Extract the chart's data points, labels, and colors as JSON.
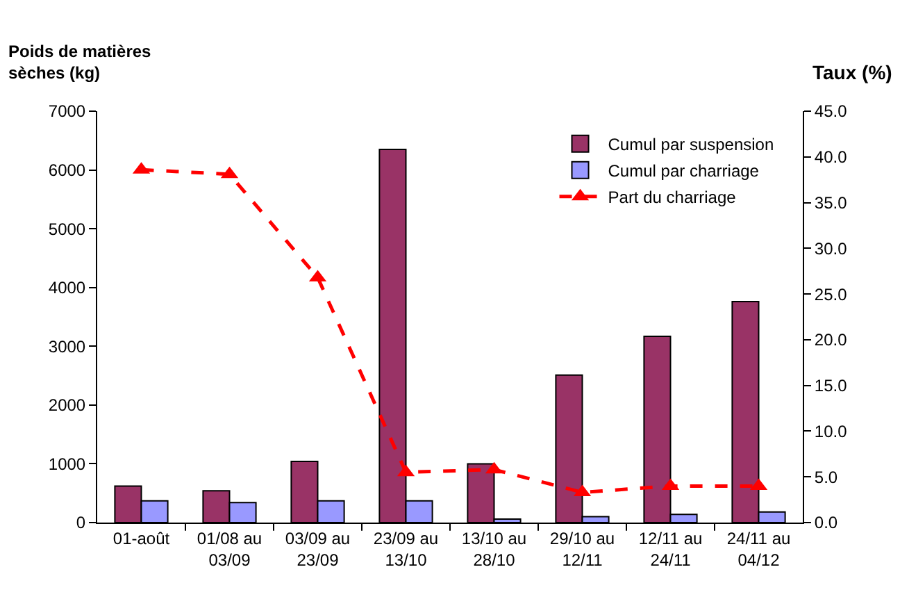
{
  "chart_data": {
    "type": "bar",
    "ylabel": "Poids de matières\nsèches (kg)",
    "y2label": "Taux (%)",
    "categories": [
      "01-août",
      "01/08 au\n03/09",
      "03/09 au\n23/09",
      "23/09 au\n13/10",
      "13/10 au\n28/10",
      "29/10 au\n12/11",
      "12/11 au\n24/11",
      "24/11 au\n04/12"
    ],
    "series": [
      {
        "name": "Cumul par suspension",
        "color": "#993366",
        "values": [
          620,
          540,
          1040,
          6350,
          1000,
          2510,
          3170,
          3760
        ]
      },
      {
        "name": "Cumul par charriage",
        "color": "#9999ff",
        "values": [
          370,
          340,
          370,
          370,
          60,
          100,
          140,
          180
        ]
      },
      {
        "name": "Part du charriage",
        "type": "line",
        "axis": "y2",
        "color": "#ff0000",
        "marker": "triangle",
        "line_style": "dashed",
        "values": [
          38.6,
          38.1,
          26.8,
          5.5,
          5.8,
          3.3,
          4.0,
          4.0
        ]
      }
    ],
    "ylim": [
      0,
      7000
    ],
    "yticks": [
      0,
      1000,
      2000,
      3000,
      4000,
      5000,
      6000,
      7000
    ],
    "y2lim": [
      0,
      45
    ],
    "y2ticks": [
      {
        "value": 0,
        "label": "0.0"
      },
      {
        "value": 5,
        "label": "5.0"
      },
      {
        "value": 10,
        "label": "10.0"
      },
      {
        "value": 15,
        "label": "15.0"
      },
      {
        "value": 20,
        "label": "20.0"
      },
      {
        "value": 25,
        "label": "25.0"
      },
      {
        "value": 30,
        "label": "30.0"
      },
      {
        "value": 35,
        "label": "35.0"
      },
      {
        "value": 40,
        "label": "40.0"
      },
      {
        "value": 45,
        "label": "45.0"
      }
    ],
    "legend": "top right"
  }
}
